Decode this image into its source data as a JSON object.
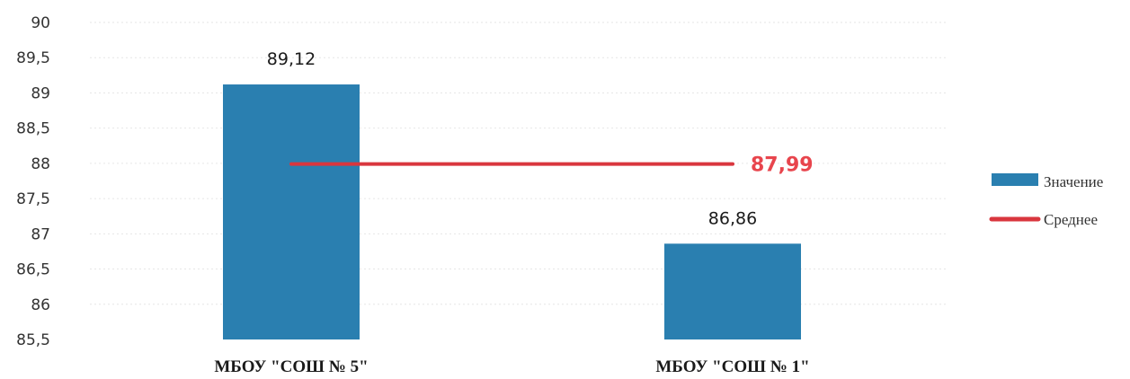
{
  "chart_data": {
    "type": "bar",
    "categories": [
      "МБОУ \"СОШ № 5\"",
      "МБОУ \"СОШ № 1\""
    ],
    "series": [
      {
        "name": "Значение",
        "type": "bar",
        "values": [
          89.12,
          86.86
        ],
        "data_labels": [
          "89,12",
          "86,86"
        ],
        "color": "#2a7fb0"
      },
      {
        "name": "Среднее",
        "type": "line",
        "values": [
          87.99,
          87.99
        ],
        "data_label": "87,99",
        "color": "#d9363e"
      }
    ],
    "yticks": [
      85.5,
      86,
      86.5,
      87,
      87.5,
      88,
      88.5,
      89,
      89.5,
      90
    ],
    "ytick_labels": [
      "85,5",
      "86",
      "86,5",
      "87",
      "87,5",
      "88",
      "88,5",
      "89",
      "89,5",
      "90"
    ],
    "ylim": [
      85.5,
      90
    ],
    "title": "",
    "xlabel": "",
    "ylabel": "",
    "grid": true,
    "legend": "right"
  }
}
